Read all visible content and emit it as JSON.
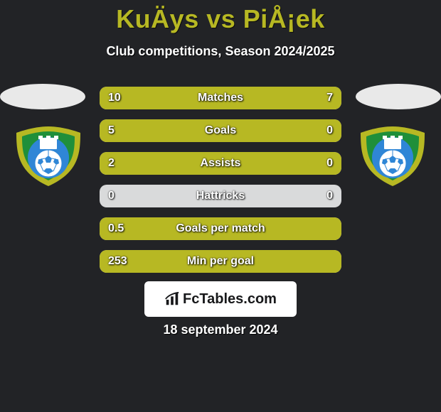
{
  "title": "KuÄys vs PiÅ¡ek",
  "subtitle": "Club competitions, Season 2024/2025",
  "date": "18 september 2024",
  "watermark": {
    "brand": "FcTables",
    "suffix": ".com"
  },
  "colors": {
    "accent": "#b7b823",
    "bar_fill": "#b7b823",
    "row_bg": "#d9dadb",
    "page_bg": "#222326",
    "ellipse": "#e9e9e9"
  },
  "badge": {
    "outer_ring": "#b7b823",
    "mid_ring": "#1f8f3a",
    "inner": "#2f86d6",
    "ball": "#ffffff",
    "castle": "#ffffff"
  },
  "rows": [
    {
      "label": "Matches",
      "left_value": "10",
      "right_value": "7",
      "left_width_pct": 80,
      "right_width_pct": 20
    },
    {
      "label": "Goals",
      "left_value": "5",
      "right_value": "0",
      "left_width_pct": 100,
      "right_width_pct": 0
    },
    {
      "label": "Assists",
      "left_value": "2",
      "right_value": "0",
      "left_width_pct": 100,
      "right_width_pct": 0
    },
    {
      "label": "Hattricks",
      "left_value": "0",
      "right_value": "0",
      "left_width_pct": 0,
      "right_width_pct": 0
    },
    {
      "label": "Goals per match",
      "left_value": "0.5",
      "right_value": "",
      "left_width_pct": 100,
      "right_width_pct": 0
    },
    {
      "label": "Min per goal",
      "left_value": "253",
      "right_value": "",
      "left_width_pct": 100,
      "right_width_pct": 0
    }
  ]
}
